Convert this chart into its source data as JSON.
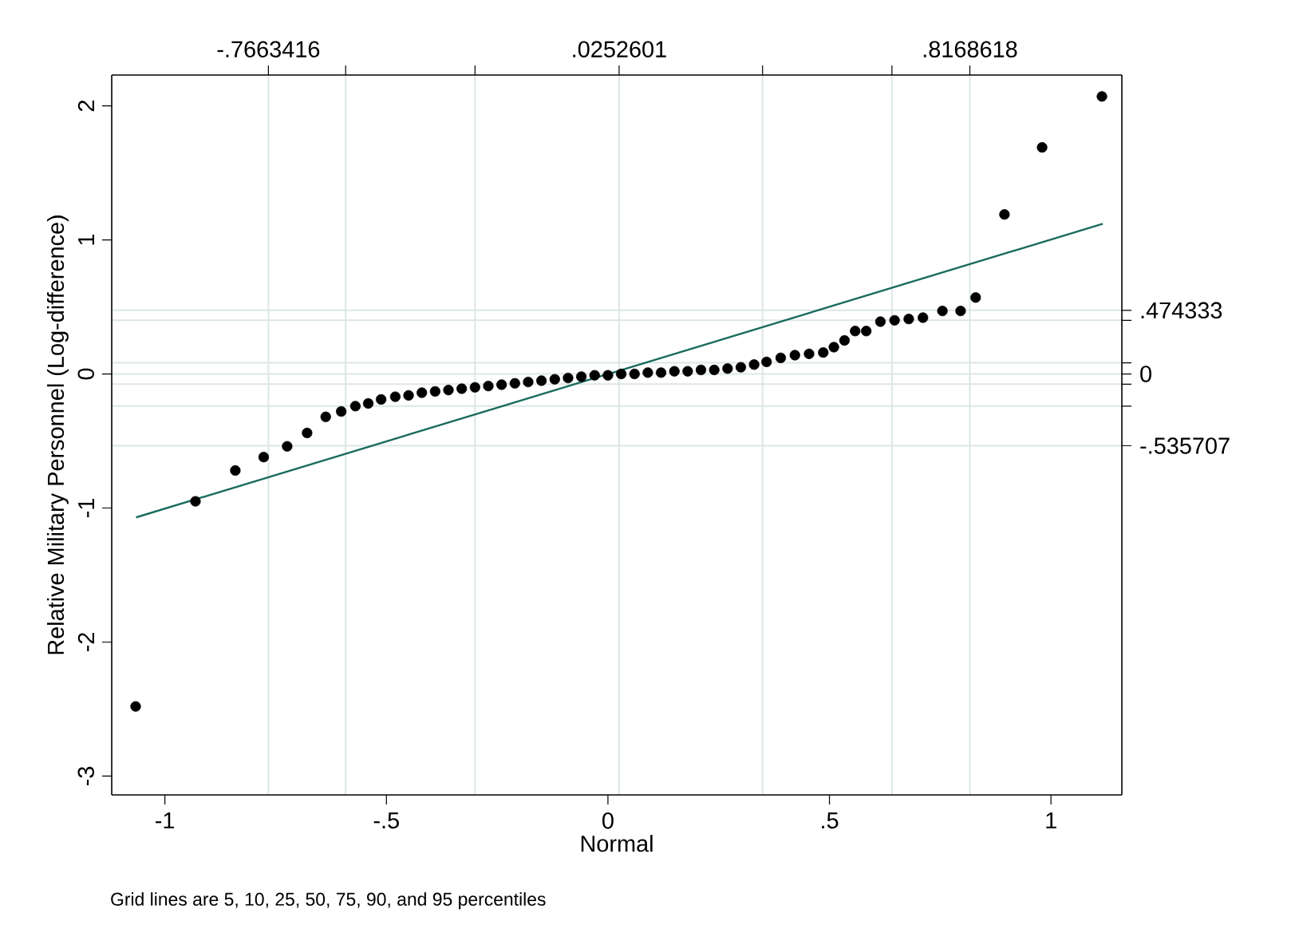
{
  "chart_data": {
    "type": "scatter",
    "xlabel": "Normal",
    "ylabel": "Relative Military Personnel (Log-difference)",
    "annotations": [
      "Grid lines are 5, 10, 25, 50, 75, 90, and 95 percentiles"
    ],
    "xlim": [
      -1.12,
      1.16
    ],
    "ylim": [
      -3.14,
      2.23
    ],
    "x2lim": [
      -1.12,
      1.16
    ],
    "y2lim": [
      -3.14,
      2.23
    ],
    "xticks": [
      {
        "value": -1,
        "label": "-1"
      },
      {
        "value": -0.5,
        "label": "-.5"
      },
      0,
      {
        "value": 0.5,
        "label": ".5"
      },
      1
    ],
    "yticks": [
      -3,
      -2,
      -1,
      0,
      1,
      2
    ],
    "x2ticks": [
      {
        "value": -0.7663416,
        "label": "-.7663416"
      },
      {
        "value": -0.592,
        "label": null
      },
      {
        "value": -0.3,
        "label": null
      },
      {
        "value": 0.0252601,
        "label": ".0252601"
      },
      {
        "value": 0.349,
        "label": null
      },
      {
        "value": 0.641,
        "label": null
      },
      {
        "value": 0.8168618,
        "label": ".8168618"
      }
    ],
    "y2ticks": [
      {
        "value": -0.535707,
        "label": "-.535707"
      },
      {
        "value": -0.24,
        "label": null
      },
      {
        "value": -0.076,
        "label": null
      },
      0,
      {
        "value": 0.083,
        "label": null
      },
      {
        "value": 0.4,
        "label": null
      },
      {
        "value": 0.474333,
        "label": ".474333"
      }
    ],
    "grid": true,
    "series": [
      {
        "marker": "circle",
        "color": "#000000",
        "x": [
          -1.066,
          -0.931,
          -0.841,
          -0.777,
          -0.724,
          -0.679,
          -0.637,
          -0.602,
          -0.57,
          -0.541,
          -0.512,
          -0.48,
          -0.45,
          -0.42,
          -0.39,
          -0.36,
          -0.33,
          -0.3,
          -0.27,
          -0.24,
          -0.21,
          -0.18,
          -0.15,
          -0.12,
          -0.09,
          -0.06,
          -0.03,
          0.0,
          0.03,
          0.06,
          0.09,
          0.12,
          0.15,
          0.18,
          0.21,
          0.24,
          0.27,
          0.3,
          0.33,
          0.358,
          0.39,
          0.422,
          0.454,
          0.486,
          0.51,
          0.534,
          0.558,
          0.583,
          0.615,
          0.647,
          0.679,
          0.711,
          0.755,
          0.796,
          0.83,
          0.895,
          0.98,
          1.115
        ],
        "values": [
          -2.48,
          -0.95,
          -0.72,
          -0.62,
          -0.54,
          -0.44,
          -0.32,
          -0.28,
          -0.24,
          -0.22,
          -0.19,
          -0.17,
          -0.16,
          -0.14,
          -0.13,
          -0.12,
          -0.11,
          -0.1,
          -0.09,
          -0.08,
          -0.07,
          -0.06,
          -0.05,
          -0.04,
          -0.03,
          -0.02,
          -0.01,
          -0.01,
          0.0,
          0.0,
          0.01,
          0.01,
          0.02,
          0.02,
          0.03,
          0.03,
          0.04,
          0.05,
          0.07,
          0.09,
          0.12,
          0.14,
          0.15,
          0.16,
          0.2,
          0.25,
          0.32,
          0.32,
          0.39,
          0.4,
          0.41,
          0.42,
          0.47,
          0.47,
          0.57,
          1.19,
          1.69,
          2.07
        ]
      },
      {
        "type": "line",
        "marker": "none",
        "color": "#1a6b5f",
        "x": [
          -1.065,
          1.117
        ],
        "values": [
          -1.07,
          1.12
        ]
      }
    ]
  }
}
